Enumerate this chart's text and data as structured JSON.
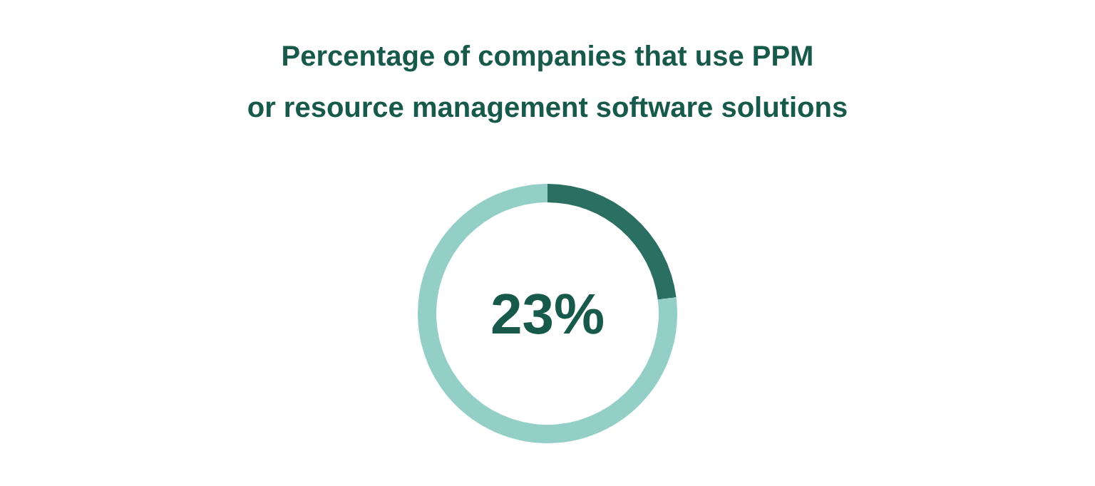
{
  "chart_data": {
    "type": "donut",
    "title": "Percentage of companies that use PPM\nor resource management software solutions",
    "categories": [
      null,
      null
    ],
    "values": [
      23,
      77
    ],
    "colors": [
      "#2b6e62",
      "#93cfc6"
    ],
    "annotations": [
      "23%"
    ]
  }
}
